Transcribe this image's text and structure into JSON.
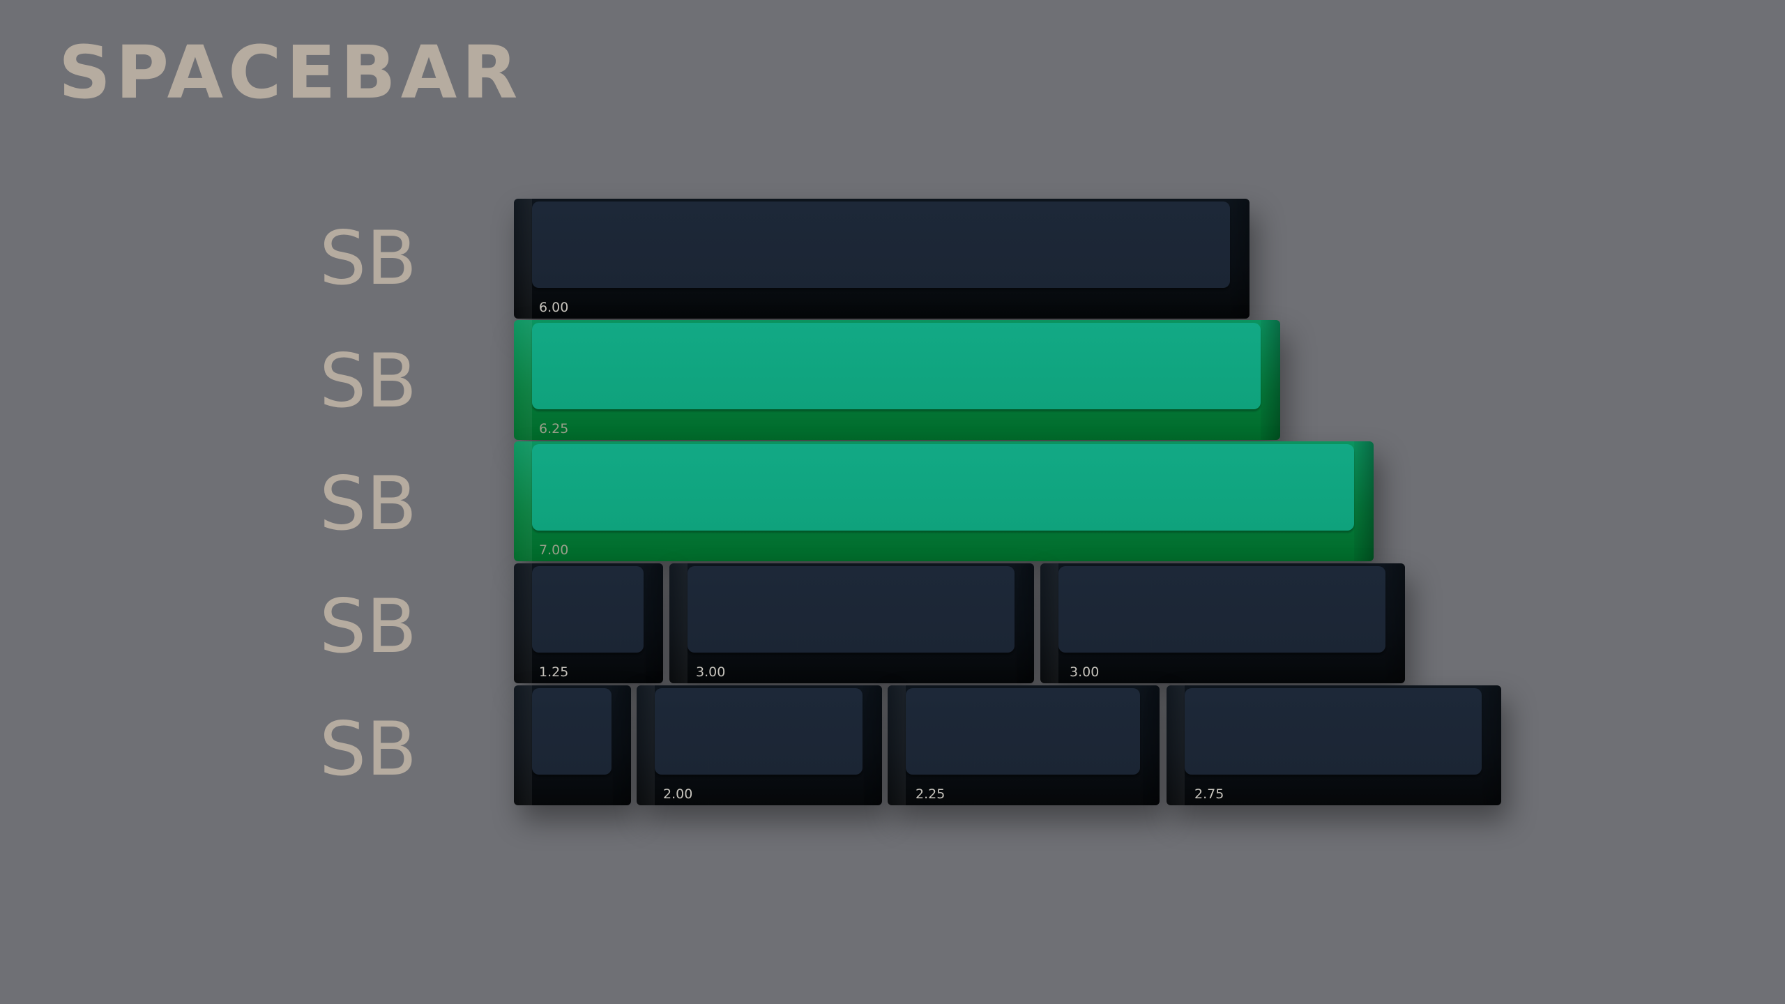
{
  "title": "SPACEBAR",
  "rows": [
    {
      "label": "SB",
      "keys": [
        {
          "legend": "6.00",
          "colorway": "dark"
        }
      ]
    },
    {
      "label": "SB",
      "keys": [
        {
          "legend": "6.25",
          "colorway": "green"
        }
      ]
    },
    {
      "label": "SB",
      "keys": [
        {
          "legend": "7.00",
          "colorway": "green"
        }
      ]
    },
    {
      "label": "SB",
      "keys": [
        {
          "legend": "1.25",
          "colorway": "dark"
        },
        {
          "legend": "3.00",
          "colorway": "dark"
        },
        {
          "legend": "3.00",
          "colorway": "dark"
        }
      ]
    },
    {
      "label": "SB",
      "keys": [
        {
          "legend": "",
          "colorway": "dark"
        },
        {
          "legend": "2.00",
          "colorway": "dark"
        },
        {
          "legend": "2.25",
          "colorway": "dark"
        },
        {
          "legend": "2.75",
          "colorway": "dark"
        }
      ]
    }
  ],
  "colors": {
    "background": "#6f7075",
    "label_text": "#b6aca0",
    "dark_keycap_top": "#1d2838",
    "green_keycap_top": "#12a985"
  }
}
